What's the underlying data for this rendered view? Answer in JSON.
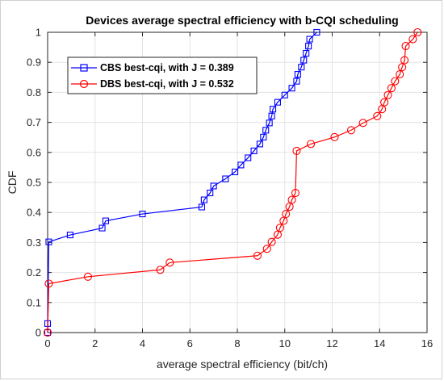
{
  "chart_data": {
    "type": "line",
    "title": "Devices average spectral efficiency with b-CQI scheduling",
    "xlabel": "average spectral efficiency (bit/ch)",
    "ylabel": "CDF",
    "xlim": [
      0,
      16
    ],
    "ylim": [
      0,
      1
    ],
    "xticks": [
      "0",
      "2",
      "4",
      "6",
      "8",
      "10",
      "12",
      "14",
      "16"
    ],
    "yticks": [
      "0",
      "0.1",
      "0.2",
      "0.3",
      "0.4",
      "0.5",
      "0.6",
      "0.7",
      "0.8",
      "0.9",
      "1"
    ],
    "grid": true,
    "legend_position": "top-left",
    "series": [
      {
        "name": "CBS best-cqi, with J = 0.389",
        "color": "#0000ff",
        "marker": "square",
        "x": [
          0,
          0,
          0.05,
          0.95,
          2.3,
          2.45,
          4.0,
          6.5,
          6.6,
          6.85,
          7.0,
          7.5,
          7.9,
          8.15,
          8.45,
          8.7,
          8.95,
          9.1,
          9.2,
          9.35,
          9.45,
          9.5,
          9.7,
          10.0,
          10.3,
          10.5,
          10.55,
          10.7,
          10.8,
          10.9,
          11.0,
          11.05,
          11.35
        ],
        "y": [
          0,
          0.03,
          0.302,
          0.325,
          0.348,
          0.372,
          0.395,
          0.418,
          0.442,
          0.465,
          0.488,
          0.512,
          0.535,
          0.558,
          0.582,
          0.605,
          0.628,
          0.651,
          0.674,
          0.698,
          0.721,
          0.744,
          0.767,
          0.791,
          0.814,
          0.837,
          0.86,
          0.884,
          0.907,
          0.93,
          0.954,
          0.977,
          1.0
        ]
      },
      {
        "name": "DBS best-cqi, with J = 0.532",
        "color": "#ff0000",
        "marker": "circle",
        "x": [
          0,
          0.05,
          1.7,
          4.75,
          5.15,
          8.85,
          9.25,
          9.45,
          9.7,
          9.8,
          9.95,
          10.05,
          10.2,
          10.3,
          10.45,
          10.5,
          11.1,
          12.1,
          12.8,
          13.3,
          13.9,
          14.1,
          14.2,
          14.35,
          14.5,
          14.65,
          14.85,
          14.95,
          15.05,
          15.1,
          15.4,
          15.6
        ],
        "y": [
          0,
          0.163,
          0.186,
          0.209,
          0.233,
          0.256,
          0.279,
          0.302,
          0.326,
          0.349,
          0.372,
          0.395,
          0.419,
          0.442,
          0.465,
          0.605,
          0.628,
          0.651,
          0.674,
          0.698,
          0.721,
          0.744,
          0.767,
          0.791,
          0.814,
          0.837,
          0.86,
          0.884,
          0.907,
          0.954,
          0.977,
          1.0
        ]
      }
    ]
  }
}
